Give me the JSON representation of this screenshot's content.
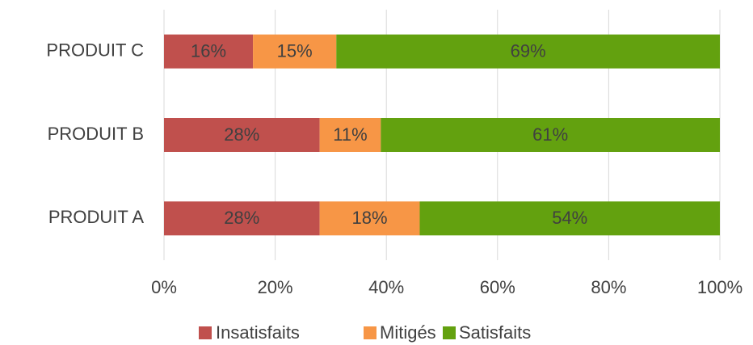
{
  "chart_data": {
    "type": "stacked-bar-horizontal",
    "categories": [
      "PRODUIT A",
      "PRODUIT B",
      "PRODUIT C"
    ],
    "series": [
      {
        "name": "Insatisfaits",
        "color": "#c0504d",
        "values": [
          28,
          28,
          16
        ],
        "value_labels": [
          "28%",
          "28%",
          "16%"
        ]
      },
      {
        "name": "Mitigés",
        "color": "#f79646",
        "values": [
          18,
          11,
          15
        ],
        "value_labels": [
          "18%",
          "11%",
          "15%"
        ]
      },
      {
        "name": "Satisfaits",
        "color": "#63a10f",
        "values": [
          54,
          61,
          69
        ],
        "value_labels": [
          "54%",
          "61%",
          "69%"
        ]
      }
    ],
    "xlim": [
      0,
      100
    ],
    "xticks": [
      {
        "value": 0,
        "label": "0%"
      },
      {
        "value": 20,
        "label": "20%"
      },
      {
        "value": 40,
        "label": "40%"
      },
      {
        "value": 60,
        "label": "60%"
      },
      {
        "value": 80,
        "label": "80%"
      },
      {
        "value": 100,
        "label": "100%"
      }
    ],
    "grid": true,
    "legend": "bottom"
  }
}
